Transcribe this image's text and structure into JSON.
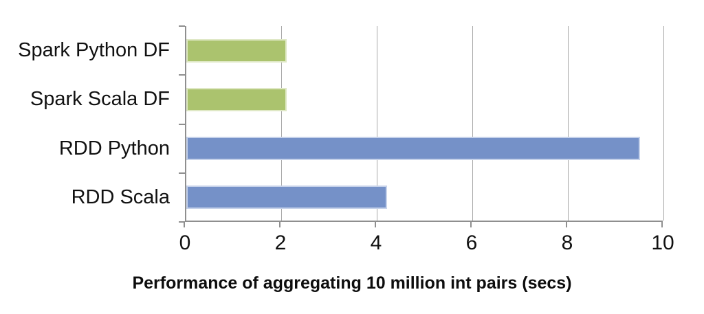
{
  "chart_data": {
    "type": "bar",
    "orientation": "horizontal",
    "title": "Performance of aggregating 10 million int pairs (secs)",
    "xlabel": "",
    "ylabel": "",
    "categories": [
      "Spark Python DF",
      "Spark Scala DF",
      "RDD Python",
      "RDD Scala"
    ],
    "values": [
      2.1,
      2.1,
      9.5,
      4.2
    ],
    "bar_colors": [
      "#abc36e",
      "#abc36e",
      "#7591c8",
      "#7591c8"
    ],
    "bar_border_colors": [
      "#dfe8c5",
      "#dfe8c5",
      "#c6d2ea",
      "#c6d2ea"
    ],
    "xlim": [
      0,
      10
    ],
    "xticks": [
      "0",
      "2",
      "4",
      "6",
      "8",
      "10"
    ],
    "grid": "vertical-major",
    "legend": "none"
  },
  "colors": {
    "gridline": "#a8a8a8",
    "axis": "#8f8f8f",
    "tick": "#8f8f8f",
    "text": "#111111",
    "background": "#ffffff"
  }
}
